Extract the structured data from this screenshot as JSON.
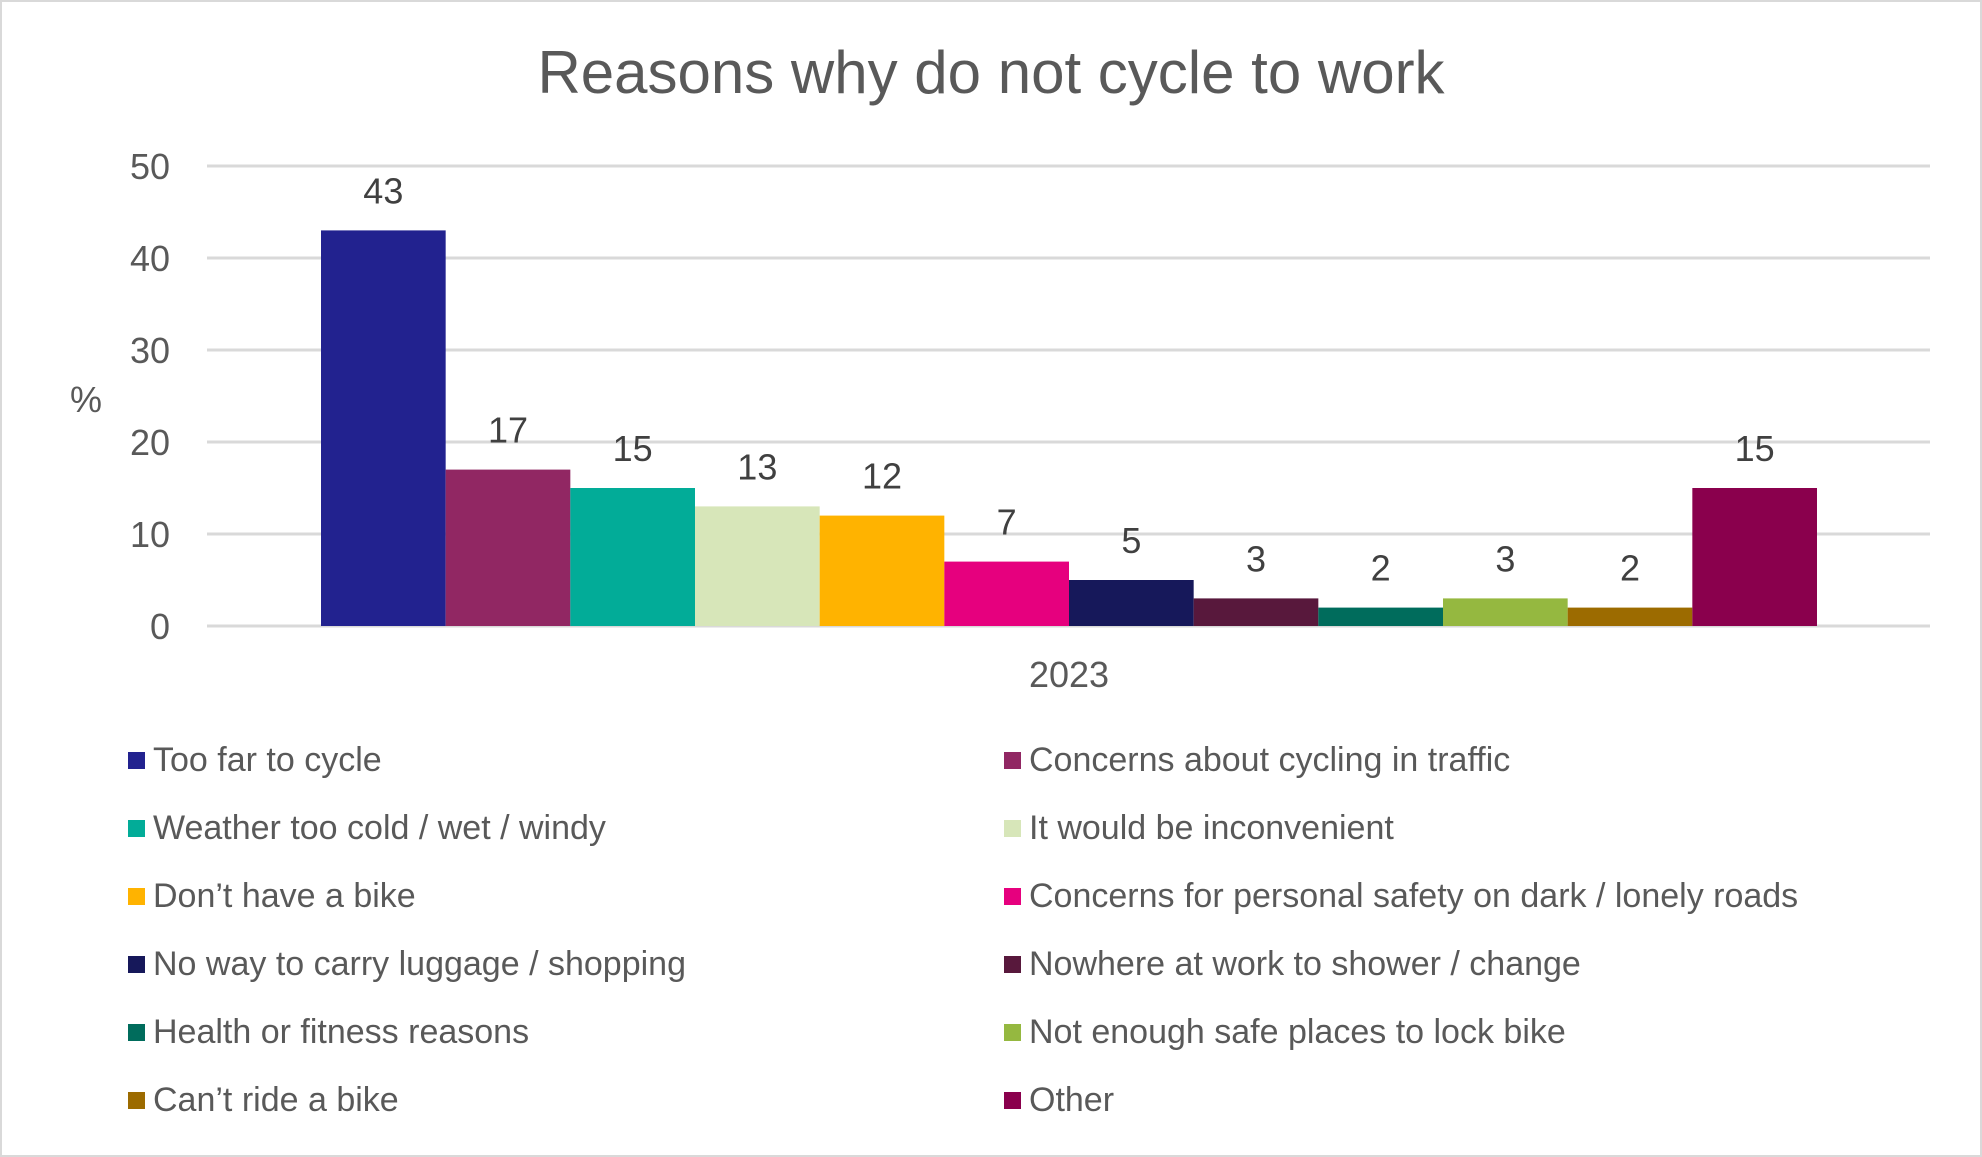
{
  "chart_data": {
    "type": "bar",
    "title": "Reasons why do not cycle to work",
    "xlabel": "",
    "ylabel": "%",
    "ylim": [
      0,
      50
    ],
    "yticks": [
      0,
      10,
      20,
      30,
      40,
      50
    ],
    "grid": true,
    "legend_position": "bottom",
    "categories": [
      "2023"
    ],
    "series": [
      {
        "name": "Too far to cycle",
        "values": [
          43
        ],
        "color": "#22228f"
      },
      {
        "name": "Concerns about cycling in traffic",
        "values": [
          17
        ],
        "color": "#912763"
      },
      {
        "name": "Weather too cold / wet / windy",
        "values": [
          15
        ],
        "color": "#02ac98"
      },
      {
        "name": "It would be inconvenient",
        "values": [
          13
        ],
        "color": "#d7e6b9"
      },
      {
        "name": "Don’t have a bike",
        "values": [
          12
        ],
        "color": "#ffb300"
      },
      {
        "name": "Concerns for personal safety on dark / lonely roads",
        "values": [
          7
        ],
        "color": "#e6007e"
      },
      {
        "name": "No way to carry luggage / shopping",
        "values": [
          5
        ],
        "color": "#16185a"
      },
      {
        "name": "Nowhere at work to shower / change",
        "values": [
          3
        ],
        "color": "#58183c"
      },
      {
        "name": "Health or fitness reasons",
        "values": [
          2
        ],
        "color": "#006c5c"
      },
      {
        "name": "Not enough safe places to lock bike",
        "values": [
          3
        ],
        "color": "#95b840"
      },
      {
        "name": "Can’t ride a bike",
        "values": [
          2
        ],
        "color": "#9c6b00"
      },
      {
        "name": "Other",
        "values": [
          15
        ],
        "color": "#8a004d"
      }
    ],
    "data_labels": true
  }
}
